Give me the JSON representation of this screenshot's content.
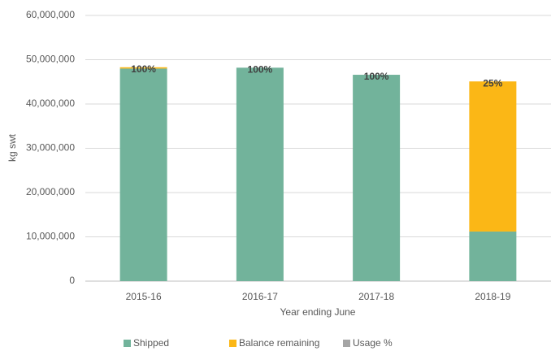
{
  "chart_data": {
    "type": "stacked_bar",
    "categories": [
      "2015-16",
      "2016-17",
      "2017-18",
      "2018-19"
    ],
    "series": [
      {
        "name": "Shipped",
        "color": "#72b39b",
        "values": [
          48000000,
          48200000,
          46600000,
          11200000
        ]
      },
      {
        "name": "Balance remaining",
        "color": "#fbb716",
        "values": [
          300000,
          0,
          0,
          33900000
        ]
      },
      {
        "name": "Usage %",
        "color": "#a5a5a5",
        "values": [
          100,
          100,
          100,
          25
        ],
        "value_labels": [
          "100%",
          "100%",
          "100%",
          "25%"
        ],
        "axis": "labels"
      }
    ],
    "ylabel": "kg swt",
    "xlabel": "Year ending June",
    "ylim": [
      0,
      60000000
    ],
    "yticks": [
      0,
      {
        "value": 10000000,
        "label": "10,000,000"
      },
      {
        "value": 20000000,
        "label": "20,000,000"
      },
      {
        "value": 30000000,
        "label": "30,000,000"
      },
      {
        "value": 40000000,
        "label": "40,000,000"
      },
      {
        "value": 50000000,
        "label": "50,000,000"
      },
      {
        "value": 60000000,
        "label": "60,000,000"
      }
    ],
    "grid": true,
    "legend": "bottom"
  }
}
